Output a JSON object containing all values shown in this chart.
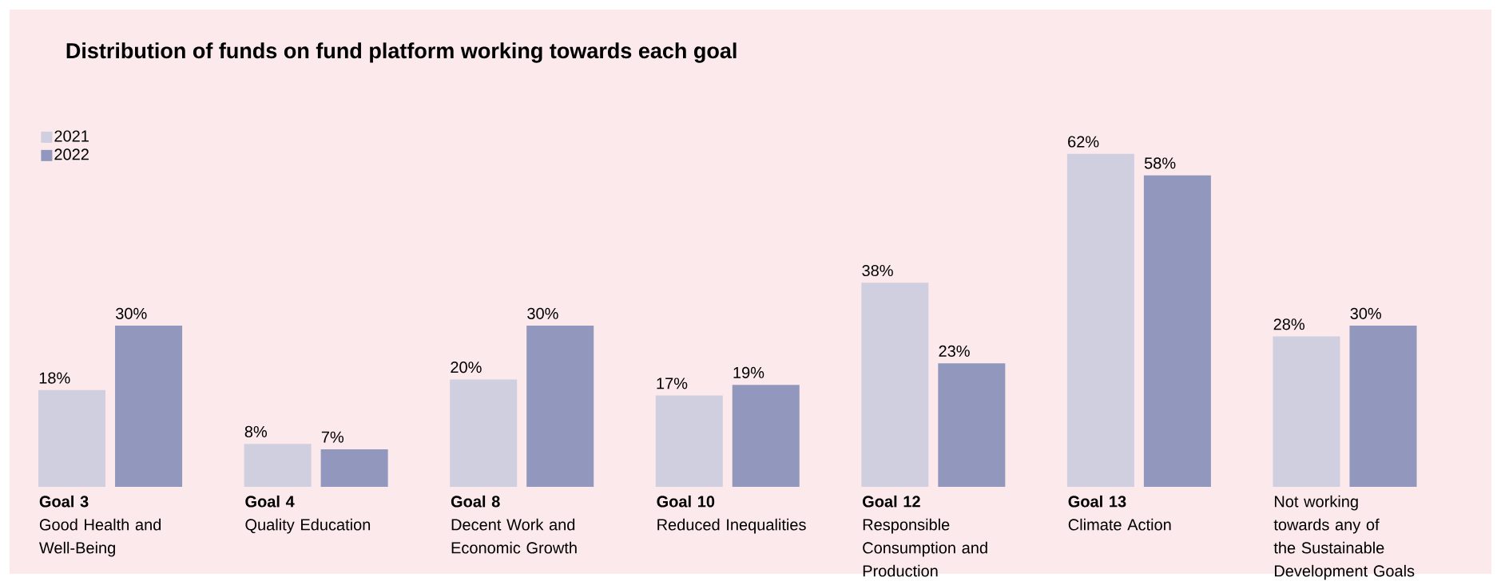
{
  "chart_data": {
    "type": "bar",
    "title": "Distribution of funds on fund platform working towards each goal",
    "categories": [
      "**Goal 3** Good Health and Well-Being",
      "**Goal 4** Quality Education",
      "**Goal 8** Decent Work and Economic Growth",
      "**Goal 10** Reduced Inequalities",
      "**Goal 12** Responsible Consumption and Production",
      "**Goal 13** Climate Action",
      "Not working towards any of the Sustainable Development Goals"
    ],
    "series": [
      {
        "name": "2021",
        "color": "#d0cfe0",
        "values": [
          18,
          8,
          20,
          17,
          38,
          62,
          28
        ],
        "value_labels": [
          "18%",
          "8%",
          "20%",
          "17%",
          "38%",
          "62%",
          "28%"
        ]
      },
      {
        "name": "2022",
        "color": "#9197bd",
        "values": [
          30,
          7,
          30,
          19,
          23,
          58,
          30
        ],
        "value_labels": [
          "30%",
          "7%",
          "30%",
          "19%",
          "23%",
          "58%",
          "30%"
        ]
      }
    ],
    "legend": "top left"
  }
}
